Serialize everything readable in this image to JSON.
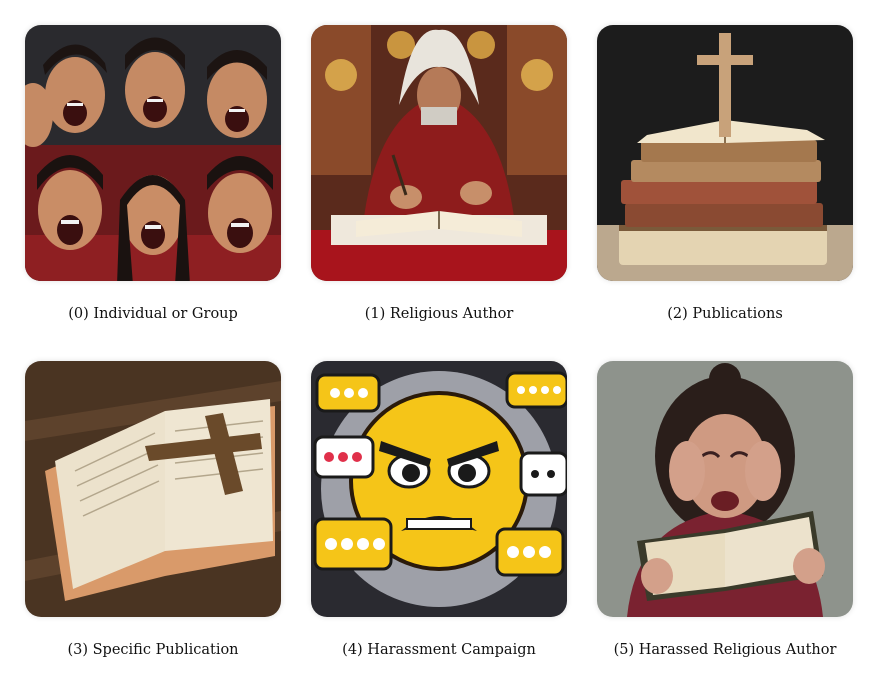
{
  "panels": [
    {
      "caption": "(0) Individual or Group",
      "icon": "angry-crowd-image"
    },
    {
      "caption": "(1) Religious Author",
      "icon": "monk-writing-image"
    },
    {
      "caption": "(2) Publications",
      "icon": "book-stack-cross-image"
    },
    {
      "caption": "(3) Specific Publication",
      "icon": "open-bible-cross-image"
    },
    {
      "caption": "(4) Harassment Campaign",
      "icon": "angry-emoji-chat-bubbles-image"
    },
    {
      "caption": "(5) Harassed Religious Author",
      "icon": "crying-woman-book-image"
    }
  ]
}
